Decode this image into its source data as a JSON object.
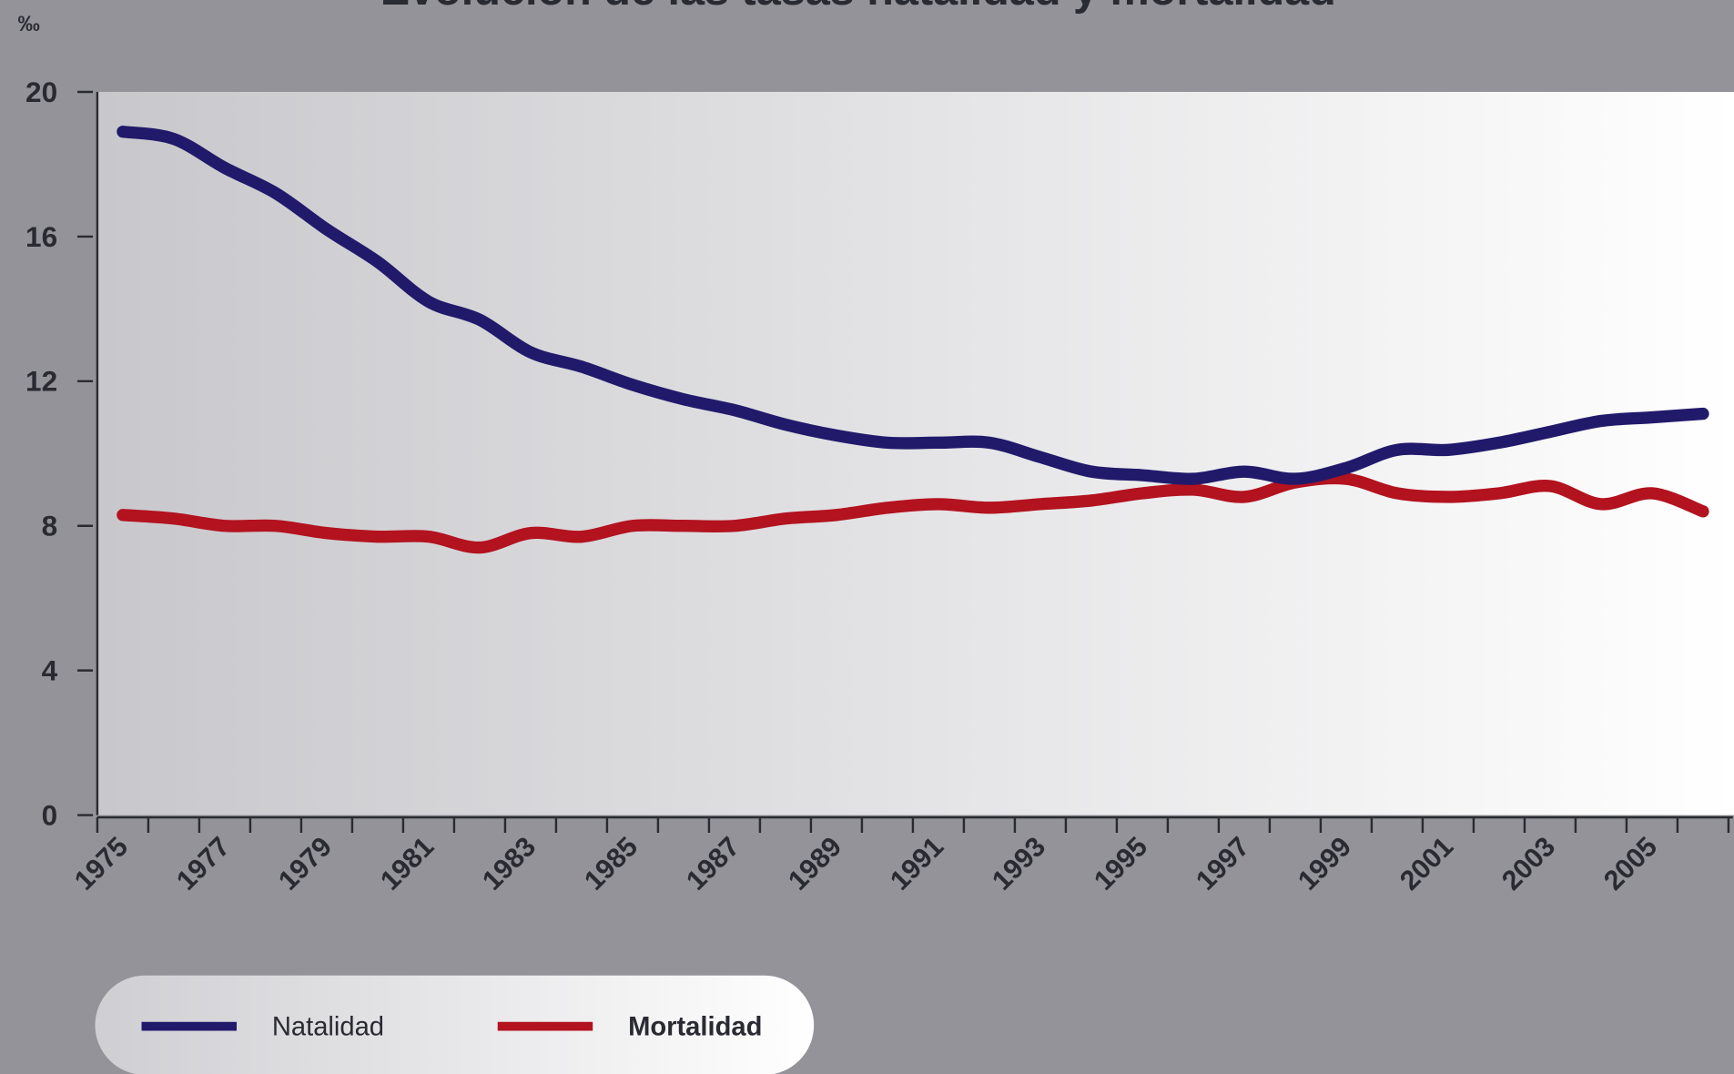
{
  "chart_data": {
    "type": "line",
    "title": "Evolución de las tasas natalidad y mortalidad",
    "y_label": "‰",
    "categories": [
      "1975",
      null,
      "1977",
      null,
      "1979",
      null,
      "1981",
      null,
      "1983",
      null,
      "1985",
      null,
      "1987",
      null,
      "1989",
      null,
      "1991",
      null,
      "1993",
      null,
      "1995",
      null,
      "1997",
      null,
      "1999",
      null,
      "2001",
      null,
      "2003",
      null,
      "2005",
      null
    ],
    "series": [
      {
        "name": "Natalidad",
        "color": "#211a6b",
        "values": [
          18.9,
          18.7,
          17.9,
          17.2,
          16.2,
          15.3,
          14.2,
          13.7,
          12.8,
          12.4,
          11.9,
          11.5,
          11.2,
          10.8,
          10.5,
          10.3,
          10.3,
          10.3,
          9.9,
          9.5,
          9.4,
          9.3,
          9.5,
          9.3,
          9.6,
          10.1,
          10.1,
          10.3,
          10.6,
          10.9,
          11.0,
          11.1
        ]
      },
      {
        "name": "Mortalidad",
        "color": "#b3121f",
        "values": [
          8.3,
          8.2,
          8.0,
          8.0,
          7.8,
          7.7,
          7.7,
          7.4,
          7.8,
          7.7,
          8.0,
          8.0,
          8.0,
          8.2,
          8.3,
          8.5,
          8.6,
          8.5,
          8.6,
          8.7,
          8.9,
          9.0,
          8.8,
          9.2,
          9.3,
          8.9,
          8.8,
          8.9,
          9.1,
          8.6,
          8.9,
          8.4
        ]
      }
    ],
    "ylim": [
      0,
      20
    ],
    "yticks": [
      0,
      4,
      8,
      12,
      16,
      20
    ],
    "legend": "bottom-left"
  }
}
